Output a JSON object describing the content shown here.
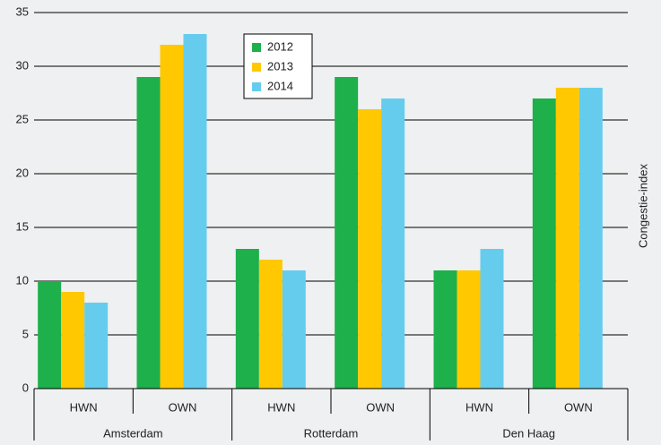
{
  "chart_data": {
    "type": "bar",
    "y_label": "Congestie-index",
    "groups": [
      "Amsterdam",
      "Rotterdam",
      "Den Haag"
    ],
    "categories": [
      "HWN",
      "OWN",
      "HWN",
      "OWN",
      "HWN",
      "OWN"
    ],
    "series": [
      {
        "name": "2012",
        "color": "#1db04b",
        "values": [
          10,
          29,
          13,
          29,
          11,
          27
        ]
      },
      {
        "name": "2013",
        "color": "#ffc800",
        "values": [
          9,
          32,
          12,
          26,
          11,
          28
        ]
      },
      {
        "name": "2014",
        "color": "#66ccee",
        "values": [
          8,
          33,
          11,
          27,
          13,
          28
        ]
      }
    ],
    "ylim": [
      0,
      35
    ],
    "yticks": [
      0,
      5,
      10,
      15,
      20,
      25,
      30,
      35
    ],
    "grid": true,
    "legend": "top"
  }
}
